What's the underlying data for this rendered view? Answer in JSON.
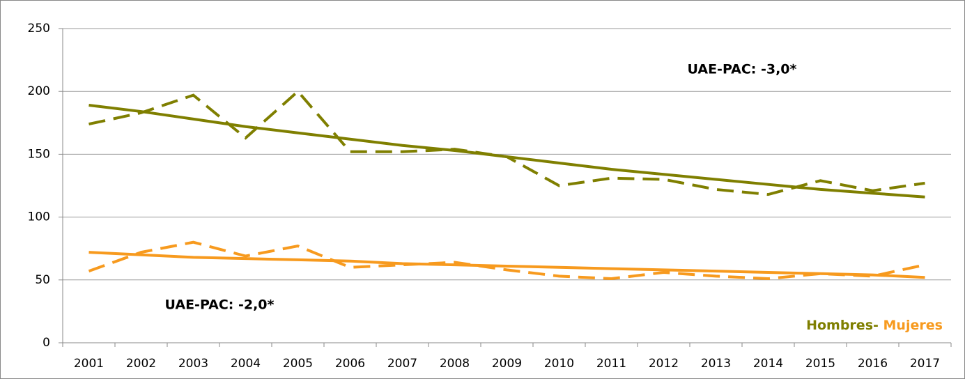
{
  "chart_data": {
    "type": "line",
    "categories": [
      "2001",
      "2002",
      "2003",
      "2004",
      "2005",
      "2006",
      "2007",
      "2008",
      "2009",
      "2010",
      "2011",
      "2012",
      "2013",
      "2014",
      "2015",
      "2016",
      "2017"
    ],
    "series": [
      {
        "color": "#7f7f00",
        "style": "dashed",
        "values": [
          174,
          183,
          197,
          163,
          200,
          152,
          152,
          154,
          148,
          125,
          131,
          130,
          122,
          118,
          129,
          121,
          127
        ]
      },
      {
        "color": "#7f7f00",
        "style": "solid",
        "values": [
          189,
          184,
          178,
          172,
          167,
          162,
          157,
          153,
          148,
          143,
          138,
          134,
          130,
          126,
          122,
          119,
          116
        ]
      },
      {
        "color": "#f79a1e",
        "style": "dashed",
        "values": [
          57,
          72,
          80,
          69,
          77,
          60,
          62,
          64,
          58,
          53,
          51,
          56,
          53,
          51,
          55,
          53,
          62
        ]
      },
      {
        "color": "#f79a1e",
        "style": "solid",
        "values": [
          72,
          70,
          68,
          67,
          66,
          65,
          63,
          62,
          61,
          60,
          59,
          58,
          57,
          56,
          55,
          54,
          52
        ]
      }
    ],
    "ylim": [
      0,
      250
    ],
    "yticks": [
      0,
      50,
      100,
      150,
      200,
      250
    ],
    "grid": true,
    "annotations": [
      {
        "text": "UAE-PAC: -3,0*",
        "color": "#7f7f00"
      },
      {
        "text": "UAE-PAC: -2,0*",
        "color": "#f79a1e"
      },
      {
        "text": "Hombres",
        "color": "#7f7f00"
      },
      {
        "text": "-",
        "color": "#7f7f00"
      },
      {
        "text": "Mujeres",
        "color": "#f79a1e"
      }
    ]
  }
}
